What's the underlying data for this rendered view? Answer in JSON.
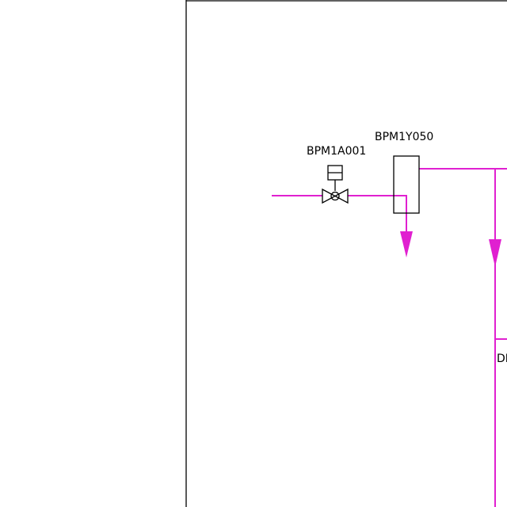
{
  "labels": {
    "valve_tag": "BPM1A001",
    "component_tag": "BPM1Y050",
    "cut_tag": "DI"
  },
  "colors": {
    "pipe": "#E020D0",
    "outline": "#000000",
    "background": "#FFFFFF"
  }
}
